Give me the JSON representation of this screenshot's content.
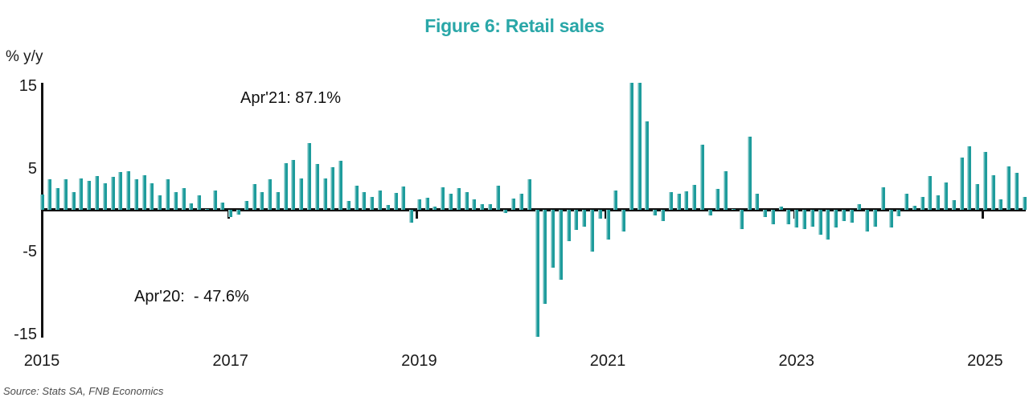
{
  "title": "Figure 6: Retail sales",
  "y_unit_label": "% y/y",
  "source": "Source: Stats SA, FNB Economics",
  "annotations": {
    "peak": "Apr'21: 87.1%",
    "trough": "Apr'20:  - 47.6%"
  },
  "colors": {
    "bar": "#1e9c9c",
    "bar_edge": "#a9d8d8",
    "title": "#2aa7a8",
    "axis": "#121212"
  },
  "chart_data": {
    "type": "bar",
    "title": "Figure 6: Retail sales",
    "ylabel": "% y/y",
    "ylim": [
      -15,
      15
    ],
    "yticks": [
      15,
      5,
      -5,
      -15
    ],
    "xticks": [
      "2015",
      "2017",
      "2019",
      "2021",
      "2023",
      "2025"
    ],
    "grid": false,
    "legend": false,
    "frequency": "monthly",
    "start": "2015-01",
    "end": "2025-06",
    "clip_at": 15.3,
    "clipped_points": [
      {
        "month": "2020-04",
        "actual": -47.6,
        "note": "annotated Apr'20:  - 47.6%"
      },
      {
        "month": "2021-04",
        "actual": 87.1,
        "note": "annotated Apr'21: 87.1%"
      },
      {
        "month": "2021-05",
        "actual": 15.3,
        "note": "bar clipped at top of axis"
      }
    ],
    "values": [
      1.8,
      3.7,
      2.6,
      3.7,
      2.1,
      3.8,
      3.5,
      4.1,
      3.2,
      4.0,
      4.6,
      4.7,
      3.7,
      4.2,
      3.2,
      1.7,
      3.7,
      2.1,
      2.6,
      0.8,
      1.7,
      0.1,
      2.3,
      0.9,
      -0.9,
      -0.6,
      1.1,
      3.1,
      2.1,
      3.7,
      2.1,
      5.6,
      6.0,
      3.8,
      8.1,
      5.5,
      3.8,
      5.1,
      5.9,
      1.1,
      2.9,
      2.1,
      1.6,
      2.3,
      0.6,
      2.0,
      2.8,
      -1.6,
      1.3,
      1.5,
      0.4,
      2.7,
      1.9,
      2.6,
      2.1,
      1.3,
      0.7,
      0.7,
      2.9,
      -0.4,
      1.4,
      1.9,
      3.7,
      -47.6,
      -11.4,
      -7.0,
      -8.4,
      -3.8,
      -2.4,
      -2.0,
      -5.0,
      -1.1,
      -3.6,
      2.3,
      -2.6,
      87.1,
      15.3,
      10.7,
      -0.7,
      -1.4,
      2.1,
      1.9,
      2.2,
      3.0,
      7.9,
      -0.7,
      2.5,
      4.7,
      0.1,
      -2.3,
      8.8,
      1.9,
      -0.9,
      -1.7,
      0.4,
      -1.7,
      -2.1,
      -2.3,
      -2.0,
      -3.0,
      -3.6,
      -2.1,
      -1.4,
      -1.6,
      0.7,
      -2.6,
      -2.0,
      2.7,
      -2.1,
      -0.8,
      1.9,
      0.5,
      1.6,
      4.1,
      1.7,
      3.3,
      1.2,
      6.3,
      7.7,
      3.1,
      7.0,
      4.2,
      1.3,
      5.2,
      4.5,
      1.6
    ]
  }
}
